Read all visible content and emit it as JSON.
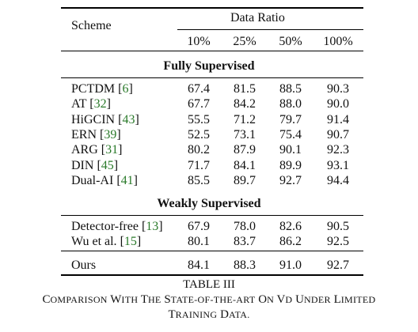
{
  "header": {
    "scheme_label": "Scheme",
    "group_label": "Data Ratio",
    "ratio_columns": [
      "10%",
      "25%",
      "50%",
      "100%"
    ]
  },
  "sections": [
    {
      "title": "Fully Supervised",
      "rows": [
        {
          "name": "PCTDM",
          "cite": "6",
          "values": [
            "67.4",
            "81.5",
            "88.5",
            "90.3"
          ]
        },
        {
          "name": "AT",
          "cite": "32",
          "values": [
            "67.7",
            "84.2",
            "88.0",
            "90.0"
          ]
        },
        {
          "name": "HiGCIN",
          "cite": "43",
          "values": [
            "55.5",
            "71.2",
            "79.7",
            "91.4"
          ]
        },
        {
          "name": "ERN",
          "cite": "39",
          "values": [
            "52.5",
            "73.1",
            "75.4",
            "90.7"
          ]
        },
        {
          "name": "ARG",
          "cite": "31",
          "values": [
            "80.2",
            "87.9",
            "90.1",
            "92.3"
          ]
        },
        {
          "name": "DIN",
          "cite": "45",
          "values": [
            "71.7",
            "84.1",
            "89.9",
            "93.1"
          ]
        },
        {
          "name": "Dual-AI",
          "cite": "41",
          "values": [
            "85.5",
            "89.7",
            "92.7",
            "94.4"
          ]
        }
      ]
    },
    {
      "title": "Weakly Supervised",
      "rows": [
        {
          "name": "Detector-free",
          "cite": "13",
          "values": [
            "67.9",
            "78.0",
            "82.6",
            "90.5"
          ]
        },
        {
          "name": "Wu et al.",
          "cite": "15",
          "values": [
            "80.1",
            "83.7",
            "86.2",
            "92.5"
          ]
        }
      ]
    }
  ],
  "ours": {
    "name": "Ours",
    "values": [
      "84.1",
      "88.3",
      "91.0",
      "92.7"
    ]
  },
  "caption": {
    "label": "TABLE III",
    "line1": "Comparison with the state-of-the-art on VD under limited",
    "line2": "training data."
  },
  "colors": {
    "citation": "#2a7a2a",
    "text": "#111111"
  }
}
